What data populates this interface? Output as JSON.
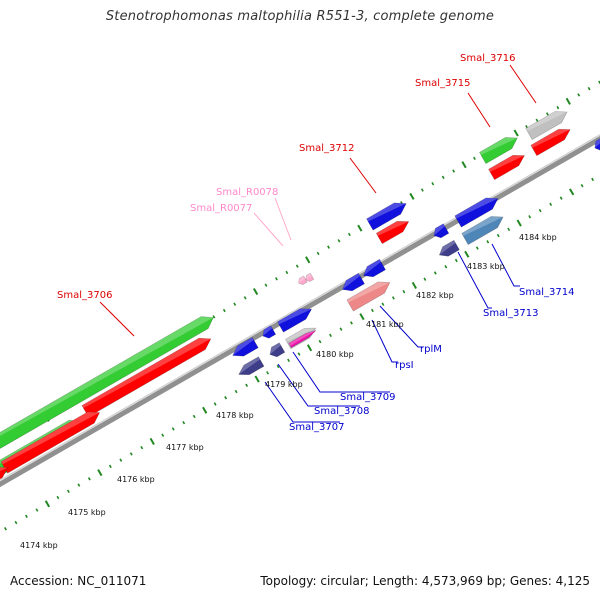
{
  "title": "Stenotrophomonas maltophilia R551-3, complete genome",
  "footer": {
    "accession": "Accession: NC_011071",
    "topology": "Topology: circular; Length: 4,573,969 bp; Genes: 4,125"
  },
  "colors": {
    "backbone": "#808080",
    "tick_top": "#228822",
    "tick_bottom": "#228822",
    "gene_red": "#ff0000",
    "gene_green": "#33cc33",
    "gene_blue": "#1111dd",
    "gene_navy": "#3d3d8a",
    "gene_grey": "#c0c0c0",
    "gene_salmon": "#ee8888",
    "gene_steel": "#4f86b8",
    "gene_magenta": "#ee11aa",
    "gene_pink": "#ffaacc",
    "label_red": "#dd0000",
    "label_blue": "#0000cc",
    "label_pink": "#ff88cc"
  },
  "scale_labels": [
    "4174 kbp",
    "4175 kbp",
    "4176 kbp",
    "4177 kbp",
    "4178 kbp",
    "4179 kbp",
    "4180 kbp",
    "4181 kbp",
    "4182 kbp",
    "4183 kbp",
    "4184 kbp"
  ],
  "gene_labels": {
    "smal_3706": "Smal_3706",
    "smal_3712": "Smal_3712",
    "smal_3715": "Smal_3715",
    "smal_3716": "Smal_3716",
    "smal_r0078": "Smal_R0078",
    "smal_r0077": "Smal_R0077",
    "smal_3707": "Smal_3707",
    "smal_3708": "Smal_3708",
    "smal_3709": "Smal_3709",
    "rpsi": "rpsI",
    "rplm": "rplM",
    "smal_3713": "Smal_3713",
    "smal_3714": "Smal_3714"
  }
}
